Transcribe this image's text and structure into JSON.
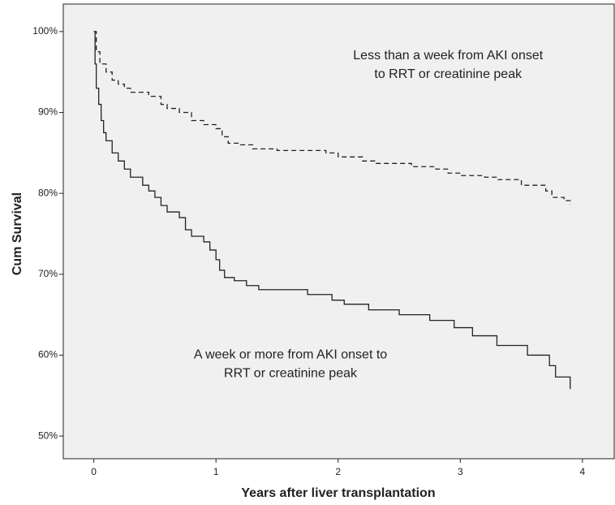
{
  "chart_data": {
    "type": "step",
    "xlabel": "Years after liver transplantation",
    "ylabel": "Cum Survival",
    "xlim": [
      -0.25,
      4.26
    ],
    "ylim": [
      47.2,
      103.4
    ],
    "xticks": [
      0,
      1,
      2,
      3,
      4
    ],
    "yticks": [
      {
        "value": 50,
        "label": "50%"
      },
      {
        "value": 60,
        "label": "60%"
      },
      {
        "value": 70,
        "label": "70%"
      },
      {
        "value": 80,
        "label": "80%"
      },
      {
        "value": 90,
        "label": "90%"
      },
      {
        "value": 100,
        "label": "100%"
      }
    ],
    "background": "#f0f0f0",
    "series": [
      {
        "color": "#222222",
        "line_style": "dashed",
        "x": [
          0,
          0.02,
          0.05,
          0.1,
          0.15,
          0.2,
          0.25,
          0.3,
          0.45,
          0.55,
          0.6,
          0.7,
          0.8,
          0.9,
          1.0,
          1.05,
          1.1,
          1.2,
          1.3,
          1.5,
          1.9,
          2.0,
          2.2,
          2.3,
          2.6,
          2.8,
          2.9,
          3.0,
          3.2,
          3.3,
          3.5,
          3.7,
          3.75,
          3.85,
          3.9
        ],
        "values": [
          100,
          97.5,
          96,
          95,
          94,
          93.5,
          93,
          92.5,
          92,
          91,
          90.5,
          90,
          89,
          88.5,
          88,
          87,
          86.2,
          86,
          85.5,
          85.3,
          85,
          84.5,
          84,
          83.7,
          83.3,
          83,
          82.5,
          82.2,
          82,
          81.7,
          81,
          80.3,
          79.5,
          79.1,
          78.6
        ]
      },
      {
        "color": "#222222",
        "line_style": "solid",
        "x": [
          0,
          0.01,
          0.02,
          0.04,
          0.06,
          0.08,
          0.1,
          0.15,
          0.2,
          0.25,
          0.3,
          0.4,
          0.45,
          0.5,
          0.55,
          0.6,
          0.7,
          0.75,
          0.8,
          0.9,
          0.95,
          1.0,
          1.03,
          1.07,
          1.15,
          1.25,
          1.35,
          1.75,
          1.95,
          2.05,
          2.25,
          2.5,
          2.75,
          2.95,
          3.1,
          3.3,
          3.55,
          3.73,
          3.78,
          3.9
        ],
        "values": [
          100,
          96,
          93,
          91,
          89,
          87.5,
          86.5,
          85,
          84,
          83,
          82,
          81,
          80.3,
          79.5,
          78.5,
          77.7,
          77,
          75.5,
          74.7,
          74,
          73,
          71.8,
          70.5,
          69.6,
          69.2,
          68.6,
          68.1,
          67.5,
          66.8,
          66.3,
          65.6,
          65,
          64.3,
          63.4,
          62.4,
          61.2,
          60,
          58.7,
          57.3,
          55.8
        ]
      }
    ],
    "annotations": [
      {
        "x": 2.9,
        "y": 97,
        "lines": [
          "Less than a week from AKI onset",
          "to RRT or creatinine peak"
        ]
      },
      {
        "x": 1.61,
        "y": 60,
        "lines": [
          "A week or more from AKI onset to",
          "RRT or creatinine peak"
        ]
      }
    ]
  }
}
